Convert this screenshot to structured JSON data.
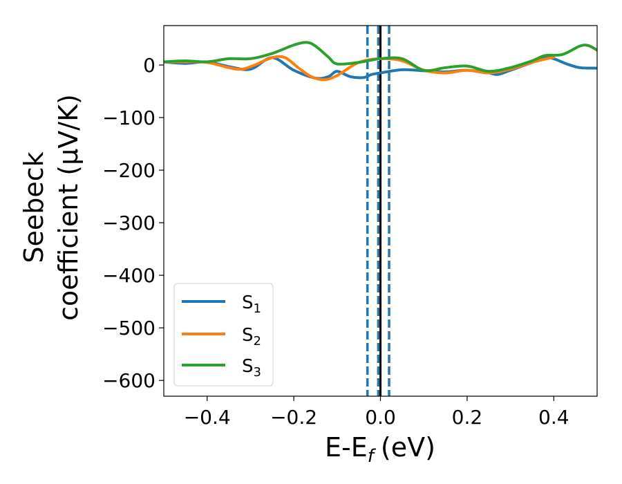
{
  "chart_data": {
    "type": "line",
    "title": "",
    "xlabel": "E-E_f (eV)",
    "xlabel_parts": {
      "main": "E-E",
      "sub": "f",
      "unit": "(eV)"
    },
    "ylabel_line1": "Seebeck",
    "ylabel_line2": "coefficient  (μV/K)",
    "xlim": [
      -0.5,
      0.5
    ],
    "ylim": [
      -630,
      75
    ],
    "xticks": [
      -0.4,
      -0.2,
      0.0,
      0.2,
      0.4
    ],
    "xtick_labels": [
      "−0.4",
      "−0.2",
      "0.0",
      "0.2",
      "0.4"
    ],
    "yticks": [
      0,
      -100,
      -200,
      -300,
      -400,
      -500,
      -600
    ],
    "ytick_labels": [
      "0",
      "−100",
      "−200",
      "−300",
      "−400",
      "−500",
      "−600"
    ],
    "grid": false,
    "legend_position": "lower-left",
    "vertical_lines": [
      {
        "x": -0.03,
        "style": "dashed",
        "color": "#1f77b4"
      },
      {
        "x": -0.005,
        "style": "dashed",
        "color": "#1f77b4"
      },
      {
        "x": 0.0,
        "style": "solid",
        "color": "#000000"
      },
      {
        "x": 0.02,
        "style": "dashed",
        "color": "#1f77b4"
      }
    ],
    "series": [
      {
        "name": "S1",
        "label_main": "S",
        "label_sub": "1",
        "color": "#1f77b4",
        "x": [
          -0.5,
          -0.45,
          -0.4,
          -0.35,
          -0.3,
          -0.25,
          -0.2,
          -0.15,
          -0.12,
          -0.1,
          -0.07,
          -0.04,
          -0.02,
          0.0,
          0.05,
          0.1,
          0.15,
          0.2,
          0.25,
          0.27,
          0.3,
          0.35,
          0.38,
          0.4,
          0.43,
          0.46,
          0.5
        ],
        "y": [
          6,
          3,
          6,
          -3,
          -8,
          14,
          -10,
          -25,
          -22,
          -12,
          -22,
          -24,
          -18,
          -15,
          -9,
          -11,
          -13,
          -10,
          -15,
          -18,
          -10,
          5,
          14,
          12,
          2,
          -5,
          -6
        ]
      },
      {
        "name": "S2",
        "label_main": "S",
        "label_sub": "2",
        "color": "#ff7f0e",
        "x": [
          -0.5,
          -0.45,
          -0.4,
          -0.35,
          -0.32,
          -0.29,
          -0.25,
          -0.22,
          -0.19,
          -0.16,
          -0.13,
          -0.1,
          -0.05,
          0.0,
          0.05,
          0.1,
          0.15,
          0.2,
          0.25,
          0.3,
          0.35,
          0.4
        ],
        "y": [
          6,
          6,
          5,
          -5,
          -8,
          0,
          14,
          14,
          -5,
          -22,
          -28,
          -20,
          5,
          12,
          8,
          -10,
          -15,
          -10,
          -15,
          -8,
          5,
          15
        ]
      },
      {
        "name": "S3",
        "label_main": "S",
        "label_sub": "3",
        "color": "#2ca02c",
        "x": [
          -0.5,
          -0.45,
          -0.4,
          -0.35,
          -0.3,
          -0.25,
          -0.2,
          -0.17,
          -0.15,
          -0.12,
          -0.1,
          -0.05,
          0.0,
          0.05,
          0.1,
          0.15,
          0.2,
          0.25,
          0.3,
          0.35,
          0.38,
          0.42,
          0.46,
          0.48,
          0.5
        ],
        "y": [
          6,
          8,
          6,
          12,
          12,
          22,
          38,
          43,
          36,
          15,
          2,
          5,
          12,
          12,
          -10,
          -5,
          -2,
          -12,
          -5,
          8,
          18,
          20,
          36,
          37,
          28
        ]
      }
    ]
  }
}
